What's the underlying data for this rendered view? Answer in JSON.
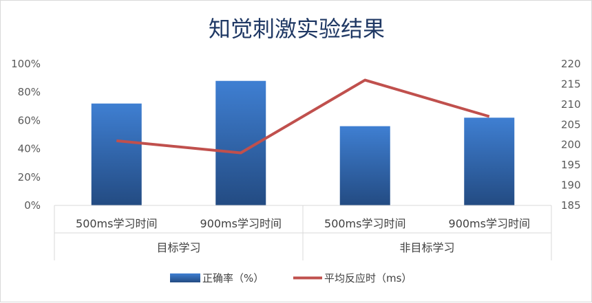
{
  "chart_data": {
    "type": "bar",
    "title": "知觉刺激实验结果",
    "categories": [
      "500ms学习时间",
      "900ms学习时间",
      "500ms学习时间",
      "900ms学习时间"
    ],
    "groups": [
      {
        "label": "目标学习",
        "span": [
          0,
          1
        ]
      },
      {
        "label": "非目标学习",
        "span": [
          2,
          3
        ]
      }
    ],
    "series": [
      {
        "name": "正确率（%）",
        "type": "bar",
        "axis": "left",
        "values": [
          72,
          88,
          56,
          62
        ],
        "color": "#3a70c0"
      },
      {
        "name": "平均反应时（ms）",
        "type": "line",
        "axis": "right",
        "values": [
          201,
          198,
          216,
          207
        ],
        "color": "#c0504d"
      }
    ],
    "y_left": {
      "ylim": [
        0,
        100
      ],
      "ticks": [
        "0%",
        "20%",
        "40%",
        "60%",
        "80%",
        "100%"
      ],
      "tick_values": [
        0,
        20,
        40,
        60,
        80,
        100
      ]
    },
    "y_right": {
      "ylim": [
        185,
        220
      ],
      "ticks": [
        "185",
        "190",
        "195",
        "200",
        "205",
        "210",
        "215",
        "220"
      ],
      "tick_values": [
        185,
        190,
        195,
        200,
        205,
        210,
        215,
        220
      ]
    },
    "grid": false,
    "legend_position": "bottom"
  }
}
